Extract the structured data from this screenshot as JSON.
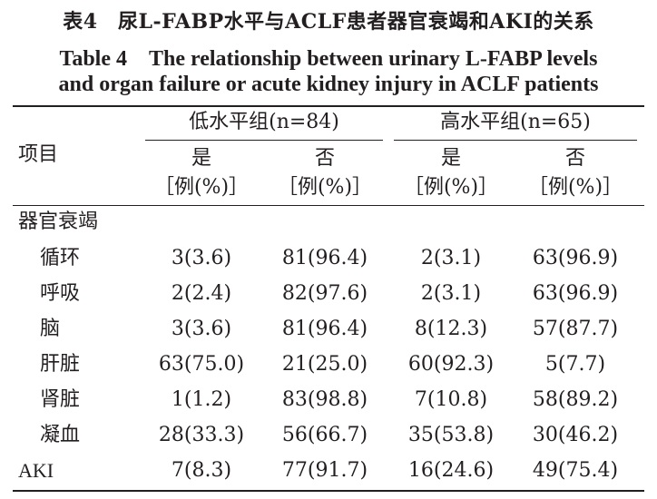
{
  "title": {
    "cn": "表4　尿L-FABP水平与ACLF患者器官衰竭和AKI的关系",
    "en_line1": "Table 4　The relationship between urinary L-FABP levels",
    "en_line2": "and organ failure or acute kidney injury in ACLF patients"
  },
  "header": {
    "item": "项目",
    "groups": [
      "低水平组(n=84)",
      "高水平组(n=65)"
    ],
    "subcols": [
      "是",
      "否",
      "是",
      "否"
    ],
    "unit": "［例(%)］"
  },
  "section_label": "器官衰竭",
  "rows": [
    {
      "label": "循环",
      "values": [
        "3(3.6)",
        "81(96.4)",
        "2(3.1)",
        "63(96.9)"
      ]
    },
    {
      "label": "呼吸",
      "values": [
        "2(2.4)",
        "82(97.6)",
        "2(3.1)",
        "63(96.9)"
      ]
    },
    {
      "label": "脑",
      "values": [
        "3(3.6)",
        "81(96.4)",
        "8(12.3)",
        "57(87.7)"
      ]
    },
    {
      "label": "肝脏",
      "values": [
        "63(75.0)",
        "21(25.0)",
        "60(92.3)",
        "5(7.7)"
      ]
    },
    {
      "label": "肾脏",
      "values": [
        "1(1.2)",
        "83(98.8)",
        "7(10.8)",
        "58(89.2)"
      ]
    },
    {
      "label": "凝血",
      "values": [
        "28(33.3)",
        "56(66.7)",
        "35(53.8)",
        "30(46.2)"
      ]
    },
    {
      "label": "AKI",
      "values": [
        "7(8.3)",
        "77(91.7)",
        "16(24.6)",
        "49(75.4)"
      ]
    }
  ]
}
